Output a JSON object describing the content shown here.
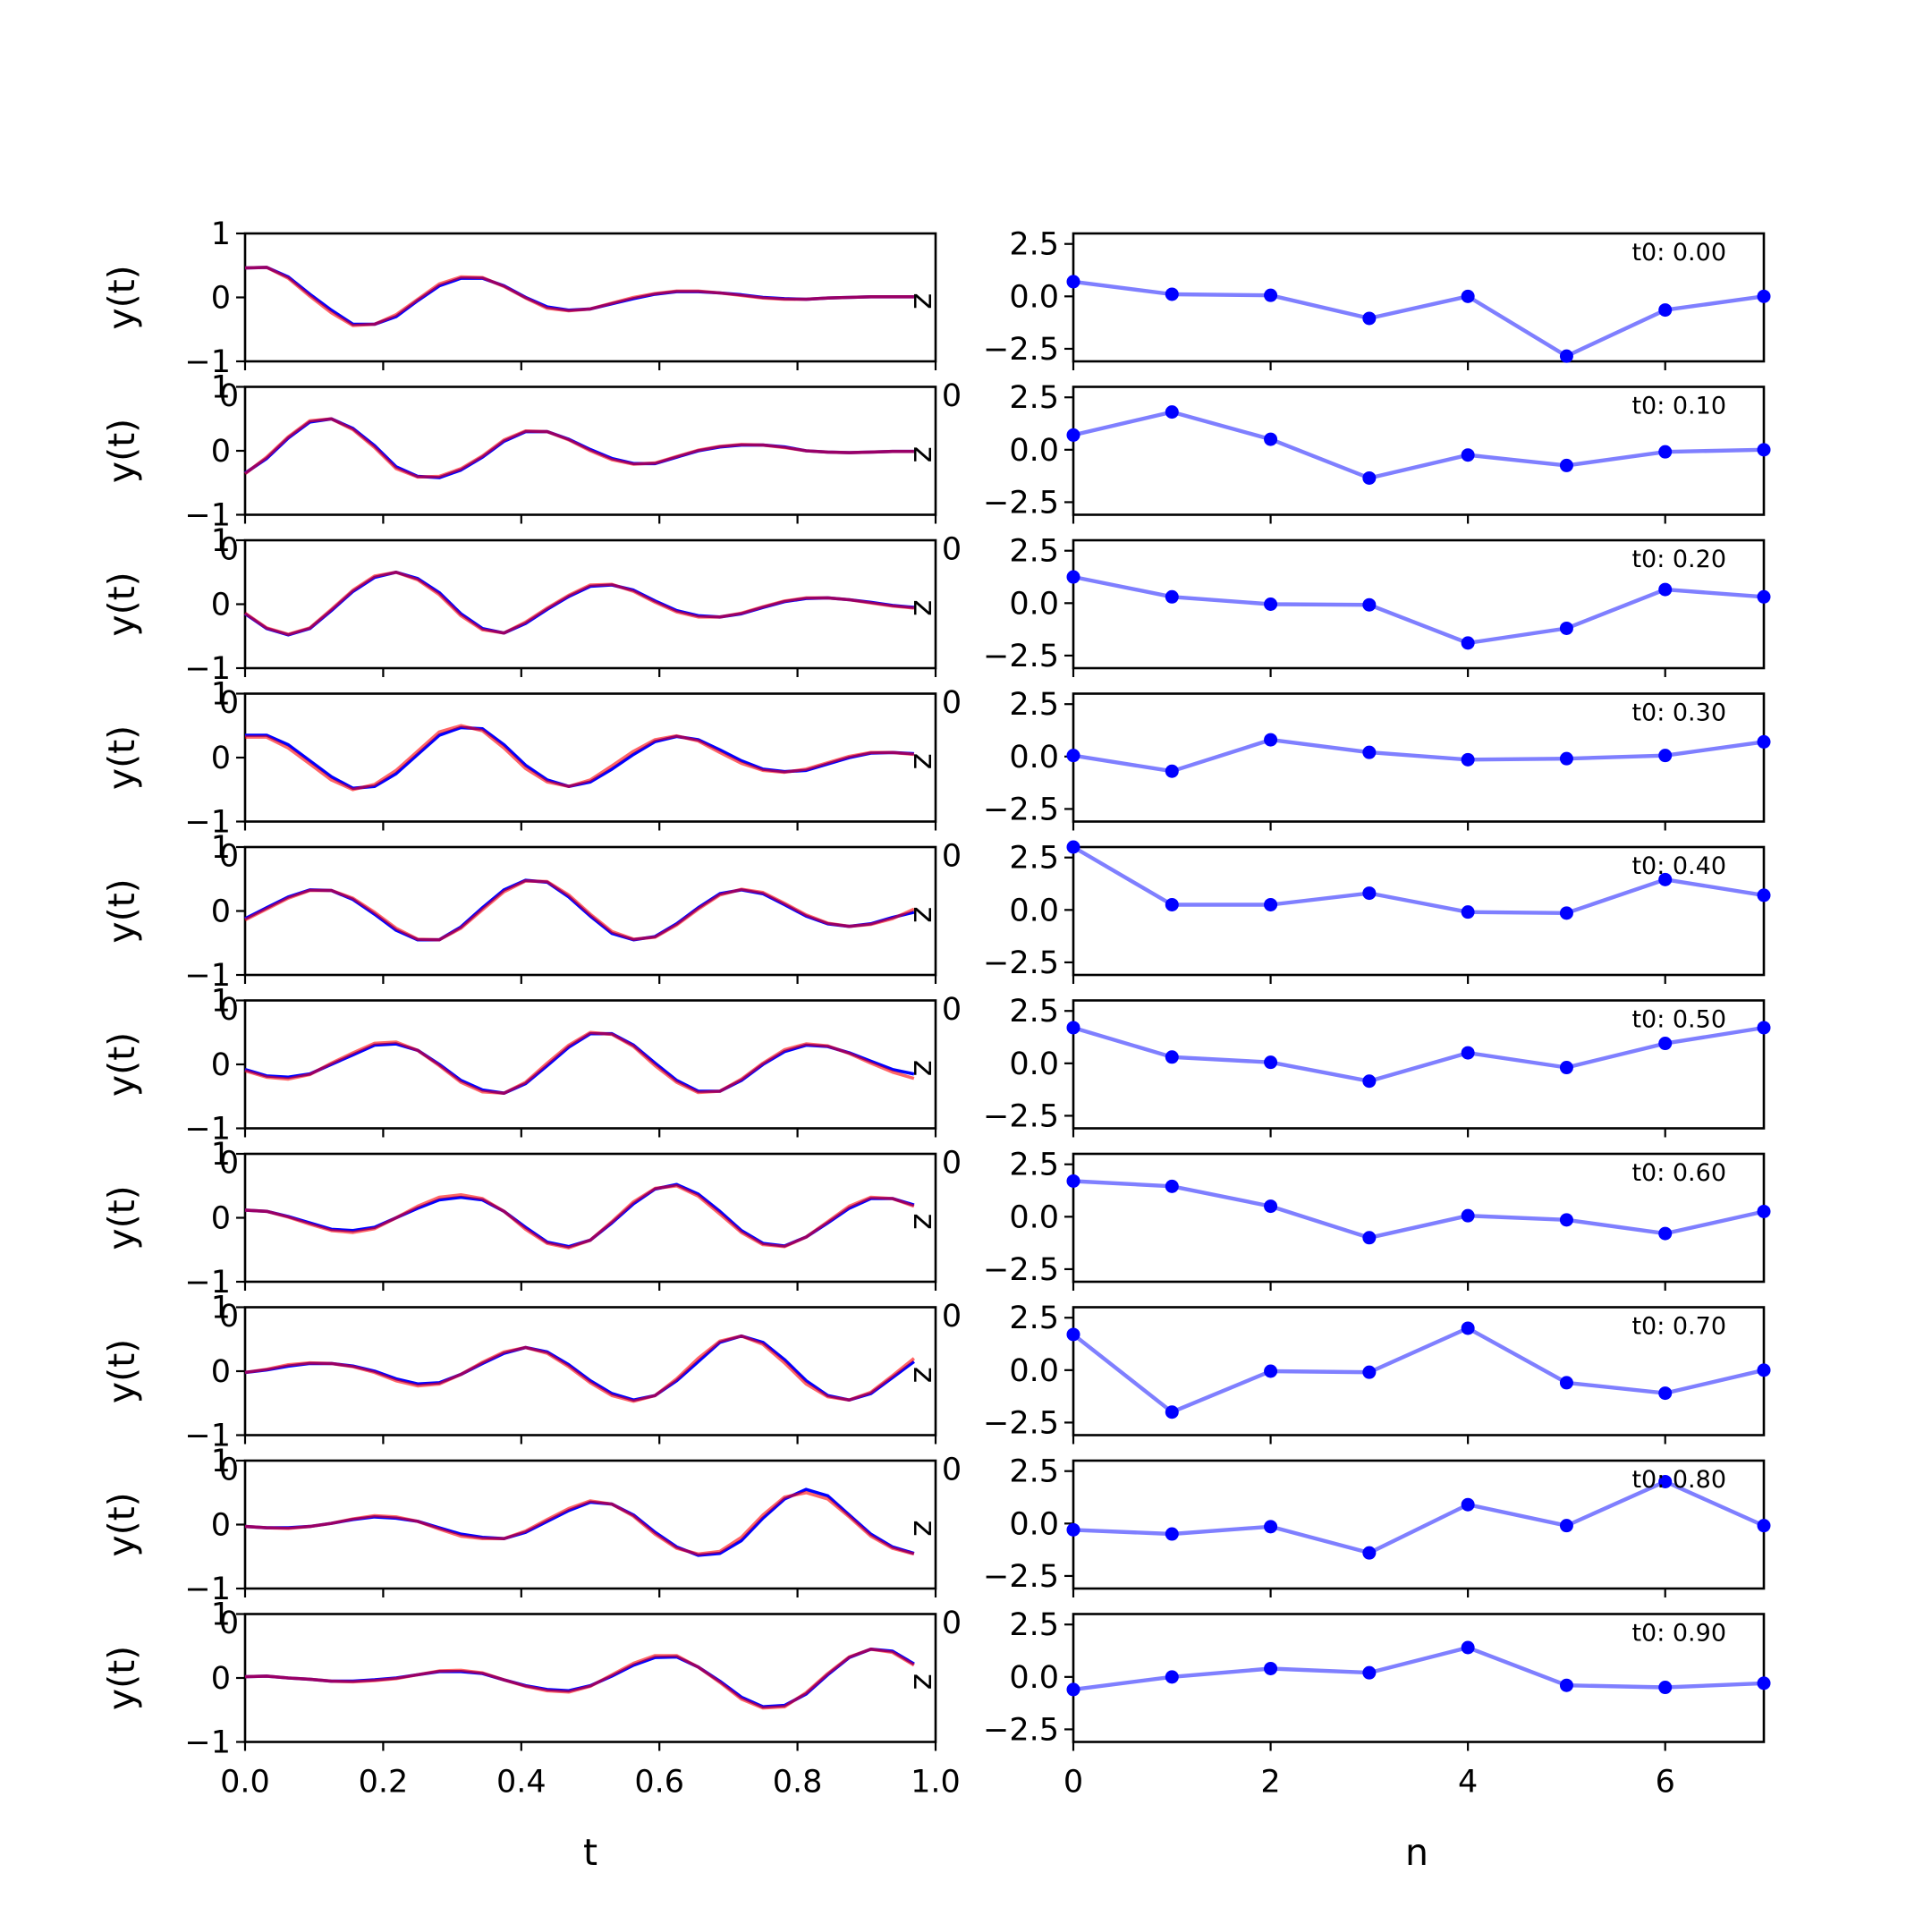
{
  "chart_data": {
    "type": "line",
    "left_column": {
      "xlabel": "t",
      "ylabel": "y(t)",
      "ylim": [
        -1,
        1
      ],
      "yticks": [
        -1,
        0,
        1
      ],
      "ytick_labels": [
        "−1",
        "0",
        "1"
      ],
      "xlim": [
        0,
        1
      ],
      "xticks": [
        0,
        0.2,
        0.4,
        0.6,
        0.8,
        1.0
      ],
      "xtick_labels": [
        "0.0",
        "0.2",
        "0.4",
        "0.6",
        "0.8",
        "1.0"
      ],
      "colors": {
        "series_a": "#0000ff",
        "series_b": "#ff0000",
        "overlap": "#800080"
      },
      "x": [
        0,
        0.03125,
        0.0625,
        0.09375,
        0.125,
        0.15625,
        0.1875,
        0.21875,
        0.25,
        0.28125,
        0.3125,
        0.34375,
        0.375,
        0.40625,
        0.4375,
        0.46875,
        0.5,
        0.53125,
        0.5625,
        0.59375,
        0.625,
        0.65625,
        0.6875,
        0.71875,
        0.75,
        0.78125,
        0.8125,
        0.84375,
        0.875,
        0.90625,
        0.9375,
        0.96875
      ],
      "panels": [
        {
          "a": [
            0.46,
            0.47,
            0.32,
            0.05,
            -0.2,
            -0.42,
            -0.42,
            -0.3,
            -0.05,
            0.18,
            0.3,
            0.3,
            0.18,
            0.0,
            -0.15,
            -0.2,
            -0.18,
            -0.1,
            -0.02,
            0.05,
            0.09,
            0.09,
            0.07,
            0.04,
            0.0,
            -0.02,
            -0.03,
            -0.01,
            0.0,
            0.01,
            0.01,
            0.01
          ],
          "b": [
            0.46,
            0.47,
            0.3,
            0.02,
            -0.24,
            -0.44,
            -0.42,
            -0.27,
            -0.03,
            0.21,
            0.32,
            0.31,
            0.17,
            -0.01,
            -0.17,
            -0.21,
            -0.18,
            -0.09,
            0.0,
            0.06,
            0.1,
            0.1,
            0.07,
            0.03,
            -0.01,
            -0.03,
            -0.03,
            -0.01,
            0.0,
            0.01,
            0.01,
            0.01
          ]
        },
        {
          "a": [
            -0.35,
            -0.12,
            0.2,
            0.45,
            0.5,
            0.35,
            0.08,
            -0.25,
            -0.4,
            -0.42,
            -0.3,
            -0.1,
            0.15,
            0.3,
            0.3,
            0.18,
            0.02,
            -0.12,
            -0.2,
            -0.2,
            -0.1,
            0.0,
            0.06,
            0.09,
            0.09,
            0.06,
            0.0,
            -0.02,
            -0.03,
            -0.02,
            -0.01,
            -0.01
          ],
          "b": [
            -0.36,
            -0.1,
            0.22,
            0.47,
            0.5,
            0.33,
            0.05,
            -0.28,
            -0.41,
            -0.4,
            -0.28,
            -0.08,
            0.17,
            0.31,
            0.3,
            0.17,
            0.0,
            -0.14,
            -0.21,
            -0.19,
            -0.09,
            0.01,
            0.07,
            0.1,
            0.09,
            0.05,
            0.0,
            -0.02,
            -0.03,
            -0.02,
            -0.01,
            -0.01
          ]
        },
        {
          "a": [
            -0.15,
            -0.38,
            -0.48,
            -0.38,
            -0.1,
            0.2,
            0.42,
            0.5,
            0.4,
            0.18,
            -0.15,
            -0.38,
            -0.45,
            -0.3,
            -0.08,
            0.12,
            0.28,
            0.3,
            0.22,
            0.05,
            -0.1,
            -0.18,
            -0.2,
            -0.15,
            -0.05,
            0.04,
            0.09,
            0.1,
            0.07,
            0.03,
            -0.02,
            -0.05
          ],
          "b": [
            -0.14,
            -0.37,
            -0.47,
            -0.37,
            -0.08,
            0.22,
            0.44,
            0.5,
            0.38,
            0.15,
            -0.18,
            -0.4,
            -0.45,
            -0.28,
            -0.06,
            0.14,
            0.3,
            0.31,
            0.2,
            0.03,
            -0.12,
            -0.2,
            -0.2,
            -0.14,
            -0.04,
            0.05,
            0.1,
            0.1,
            0.07,
            0.02,
            -0.03,
            -0.06
          ]
        },
        {
          "a": [
            0.35,
            0.35,
            0.2,
            -0.05,
            -0.3,
            -0.48,
            -0.45,
            -0.25,
            0.05,
            0.35,
            0.47,
            0.45,
            0.2,
            -0.12,
            -0.35,
            -0.45,
            -0.38,
            -0.18,
            0.05,
            0.25,
            0.33,
            0.28,
            0.12,
            -0.05,
            -0.18,
            -0.22,
            -0.2,
            -0.1,
            0.0,
            0.07,
            0.08,
            0.06
          ],
          "b": [
            0.32,
            0.32,
            0.15,
            -0.1,
            -0.35,
            -0.5,
            -0.42,
            -0.2,
            0.1,
            0.4,
            0.5,
            0.42,
            0.15,
            -0.17,
            -0.38,
            -0.45,
            -0.35,
            -0.13,
            0.1,
            0.28,
            0.34,
            0.26,
            0.08,
            -0.09,
            -0.2,
            -0.23,
            -0.18,
            -0.08,
            0.02,
            0.08,
            0.08,
            0.05
          ]
        },
        {
          "a": [
            -0.12,
            0.05,
            0.22,
            0.33,
            0.32,
            0.18,
            -0.05,
            -0.3,
            -0.45,
            -0.45,
            -0.25,
            0.05,
            0.33,
            0.48,
            0.45,
            0.22,
            -0.08,
            -0.35,
            -0.45,
            -0.4,
            -0.2,
            0.05,
            0.27,
            0.33,
            0.27,
            0.1,
            -0.08,
            -0.2,
            -0.24,
            -0.2,
            -0.1,
            -0.02
          ],
          "b": [
            -0.14,
            0.03,
            0.2,
            0.32,
            0.32,
            0.2,
            -0.02,
            -0.27,
            -0.44,
            -0.45,
            -0.27,
            0.02,
            0.3,
            0.47,
            0.46,
            0.25,
            -0.05,
            -0.32,
            -0.44,
            -0.41,
            -0.22,
            0.03,
            0.25,
            0.34,
            0.29,
            0.12,
            -0.06,
            -0.19,
            -0.24,
            -0.21,
            -0.12,
            0.03
          ]
        },
        {
          "a": [
            -0.08,
            -0.18,
            -0.2,
            -0.15,
            0.0,
            0.15,
            0.3,
            0.32,
            0.22,
            0.0,
            -0.25,
            -0.4,
            -0.45,
            -0.3,
            -0.02,
            0.27,
            0.48,
            0.48,
            0.3,
            0.02,
            -0.25,
            -0.42,
            -0.42,
            -0.25,
            0.0,
            0.2,
            0.3,
            0.28,
            0.18,
            0.05,
            -0.08,
            -0.15
          ],
          "b": [
            -0.1,
            -0.2,
            -0.23,
            -0.16,
            0.02,
            0.18,
            0.33,
            0.35,
            0.22,
            -0.02,
            -0.28,
            -0.43,
            -0.45,
            -0.28,
            0.02,
            0.3,
            0.5,
            0.47,
            0.28,
            -0.02,
            -0.28,
            -0.44,
            -0.42,
            -0.23,
            0.02,
            0.23,
            0.32,
            0.29,
            0.17,
            0.02,
            -0.12,
            -0.22
          ]
        },
        {
          "a": [
            0.12,
            0.1,
            0.02,
            -0.08,
            -0.18,
            -0.2,
            -0.15,
            0.0,
            0.15,
            0.28,
            0.32,
            0.28,
            0.1,
            -0.15,
            -0.38,
            -0.45,
            -0.35,
            -0.08,
            0.22,
            0.45,
            0.52,
            0.37,
            0.1,
            -0.2,
            -0.4,
            -0.44,
            -0.3,
            -0.08,
            0.15,
            0.3,
            0.3,
            0.2
          ],
          "b": [
            0.12,
            0.1,
            0.01,
            -0.1,
            -0.2,
            -0.23,
            -0.17,
            0.0,
            0.18,
            0.32,
            0.36,
            0.3,
            0.1,
            -0.18,
            -0.4,
            -0.47,
            -0.35,
            -0.06,
            0.25,
            0.46,
            0.5,
            0.34,
            0.06,
            -0.23,
            -0.42,
            -0.45,
            -0.3,
            -0.06,
            0.18,
            0.32,
            0.3,
            0.18
          ]
        },
        {
          "a": [
            -0.02,
            0.02,
            0.08,
            0.12,
            0.12,
            0.08,
            0.0,
            -0.12,
            -0.2,
            -0.18,
            -0.05,
            0.12,
            0.28,
            0.37,
            0.3,
            0.1,
            -0.15,
            -0.35,
            -0.45,
            -0.38,
            -0.15,
            0.15,
            0.45,
            0.55,
            0.45,
            0.18,
            -0.15,
            -0.38,
            -0.45,
            -0.35,
            -0.1,
            0.15
          ],
          "b": [
            -0.02,
            0.03,
            0.1,
            0.13,
            0.12,
            0.07,
            -0.02,
            -0.15,
            -0.23,
            -0.2,
            -0.05,
            0.14,
            0.3,
            0.37,
            0.28,
            0.07,
            -0.18,
            -0.38,
            -0.47,
            -0.38,
            -0.12,
            0.2,
            0.47,
            0.55,
            0.42,
            0.13,
            -0.2,
            -0.4,
            -0.45,
            -0.33,
            -0.07,
            0.2
          ]
        },
        {
          "a": [
            -0.03,
            -0.05,
            -0.05,
            -0.03,
            0.02,
            0.08,
            0.12,
            0.1,
            0.05,
            -0.05,
            -0.15,
            -0.2,
            -0.22,
            -0.12,
            0.05,
            0.22,
            0.35,
            0.32,
            0.15,
            -0.12,
            -0.35,
            -0.48,
            -0.45,
            -0.25,
            0.1,
            0.4,
            0.55,
            0.45,
            0.15,
            -0.15,
            -0.35,
            -0.45
          ],
          "b": [
            -0.03,
            -0.05,
            -0.06,
            -0.03,
            0.02,
            0.09,
            0.14,
            0.12,
            0.05,
            -0.07,
            -0.18,
            -0.22,
            -0.22,
            -0.1,
            0.08,
            0.25,
            0.37,
            0.32,
            0.13,
            -0.15,
            -0.37,
            -0.46,
            -0.42,
            -0.2,
            0.15,
            0.43,
            0.5,
            0.4,
            0.12,
            -0.18,
            -0.37,
            -0.46
          ]
        },
        {
          "a": [
            0.02,
            0.03,
            0.0,
            -0.02,
            -0.05,
            -0.05,
            -0.03,
            0.0,
            0.05,
            0.1,
            0.1,
            0.07,
            -0.03,
            -0.12,
            -0.18,
            -0.2,
            -0.12,
            0.03,
            0.2,
            0.32,
            0.33,
            0.17,
            -0.05,
            -0.3,
            -0.45,
            -0.43,
            -0.25,
            0.05,
            0.32,
            0.45,
            0.42,
            0.22
          ],
          "b": [
            0.02,
            0.03,
            0.0,
            -0.02,
            -0.05,
            -0.06,
            -0.04,
            -0.01,
            0.05,
            0.11,
            0.12,
            0.08,
            -0.03,
            -0.13,
            -0.2,
            -0.22,
            -0.13,
            0.05,
            0.23,
            0.35,
            0.35,
            0.17,
            -0.07,
            -0.33,
            -0.47,
            -0.45,
            -0.23,
            0.07,
            0.33,
            0.45,
            0.4,
            0.2
          ]
        }
      ]
    },
    "right_column": {
      "xlabel": "n",
      "ylim": [
        -3.1,
        3.0
      ],
      "yticks": [
        -2.5,
        0.0,
        2.5
      ],
      "ytick_labels": [
        "−2.5",
        "0.0",
        "2.5"
      ],
      "xlim": [
        0,
        7
      ],
      "xticks": [
        0,
        2,
        4,
        6
      ],
      "xtick_labels": [
        "0",
        "2",
        "4",
        "6"
      ],
      "color": "#0000ff",
      "n": [
        0,
        1,
        2,
        3,
        4,
        5,
        6,
        7
      ],
      "panels": [
        {
          "annotation": "t0: 0.00",
          "values": [
            0.7,
            0.1,
            0.05,
            -1.05,
            0.0,
            -2.85,
            -0.65,
            0.0
          ]
        },
        {
          "annotation": "t0: 0.10",
          "values": [
            0.7,
            1.8,
            0.5,
            -1.35,
            -0.25,
            -0.75,
            -0.1,
            0.0
          ]
        },
        {
          "annotation": "t0: 0.20",
          "values": [
            1.25,
            0.3,
            -0.05,
            -0.08,
            -1.9,
            -1.2,
            0.65,
            0.3
          ]
        },
        {
          "annotation": "t0: 0.30",
          "values": [
            0.05,
            -0.7,
            0.8,
            0.2,
            -0.15,
            -0.1,
            0.05,
            0.7
          ]
        },
        {
          "annotation": "t0: 0.40",
          "values": [
            3.0,
            0.25,
            0.25,
            0.8,
            -0.1,
            -0.15,
            1.45,
            0.7
          ]
        },
        {
          "annotation": "t0: 0.50",
          "values": [
            1.7,
            0.3,
            0.05,
            -0.85,
            0.5,
            -0.2,
            0.95,
            1.7
          ]
        },
        {
          "annotation": "t0: 0.60",
          "values": [
            1.7,
            1.45,
            0.5,
            -1.0,
            0.05,
            -0.15,
            -0.8,
            0.25
          ]
        },
        {
          "annotation": "t0: 0.70",
          "values": [
            1.7,
            -2.0,
            -0.05,
            -0.1,
            2.0,
            -0.6,
            -1.1,
            0.0
          ]
        },
        {
          "annotation": "t0: 0.80",
          "values": [
            -0.3,
            -0.5,
            -0.15,
            -1.4,
            0.9,
            -0.1,
            2.0,
            -0.1
          ]
        },
        {
          "annotation": "t0: 0.90",
          "values": [
            -0.6,
            0.0,
            0.4,
            0.2,
            1.4,
            -0.4,
            -0.5,
            -0.3
          ]
        }
      ]
    },
    "stray_labels": {
      "left_top": "0",
      "right_top": "0",
      "right_edge": "z"
    }
  }
}
